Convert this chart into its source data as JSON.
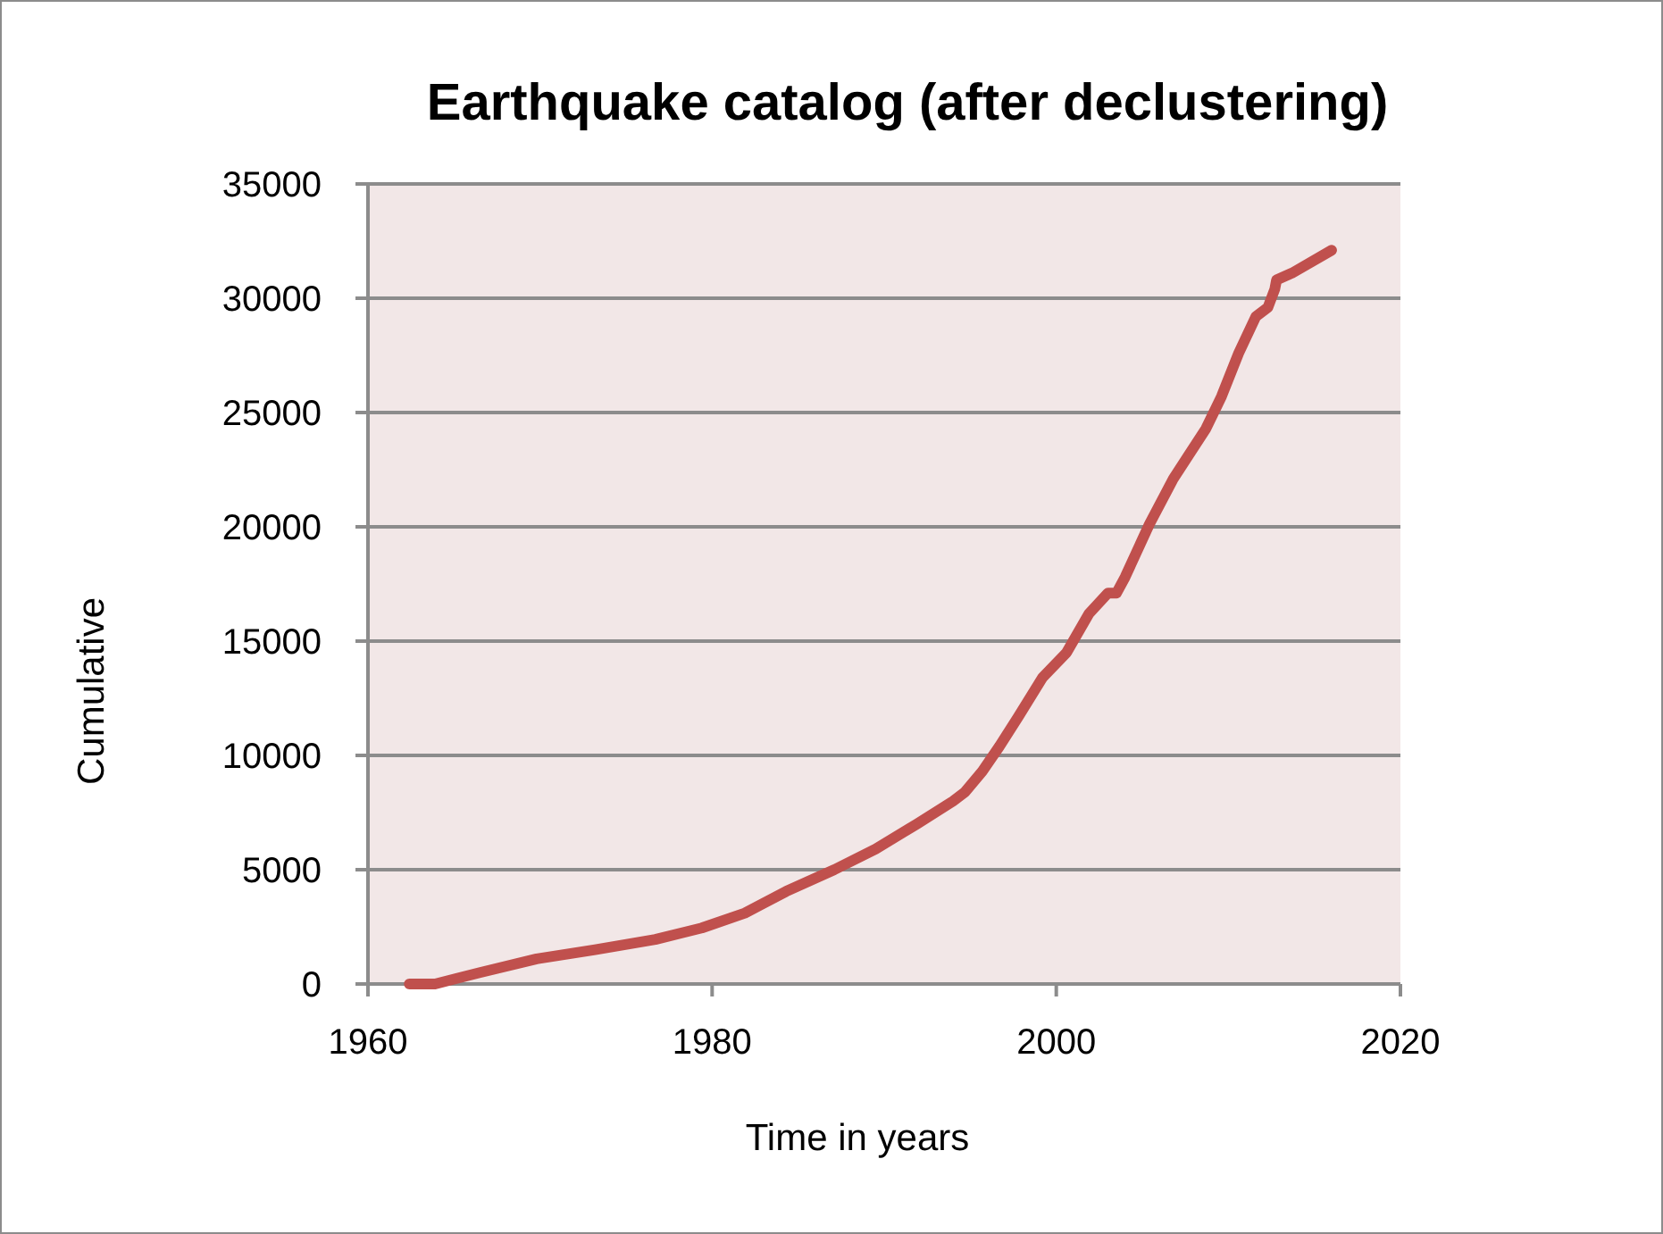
{
  "chart_data": {
    "type": "line",
    "title": "Earthquake catalog (after declustering)",
    "xlabel": "Time in years",
    "ylabel": "Cumulative",
    "x": [
      1962.4,
      1963.9,
      1966.5,
      1969.8,
      1973.2,
      1976.7,
      1979.4,
      1981.9,
      1984.3,
      1987.1,
      1989.5,
      1991.9,
      1994.0,
      1994.7,
      1995.7,
      1996.7,
      1997.8,
      1999.2,
      2000.6,
      2001.9,
      2003.0,
      2003.5,
      2004.0,
      2005.4,
      2006.8,
      2008.7,
      2009.6,
      2010.6,
      2011.6,
      2012.3,
      2012.7,
      2012.8,
      2013.7,
      2016.0
    ],
    "series": [
      {
        "color": "#c0504d",
        "values": [
          0,
          0,
          500,
          1100,
          1500,
          1950,
          2450,
          3100,
          4050,
          5000,
          5900,
          7000,
          8000,
          8400,
          9300,
          10400,
          11700,
          13400,
          14500,
          16200,
          17100,
          17100,
          17800,
          20100,
          22100,
          24300,
          25700,
          27600,
          29200,
          29600,
          30400,
          30800,
          31100,
          32100
        ]
      }
    ],
    "xlim": [
      1960,
      2020
    ],
    "xticks": [
      1960,
      1980,
      2000,
      2020
    ],
    "ylim": [
      0,
      35000
    ],
    "yticks": [
      0,
      5000,
      10000,
      15000,
      20000,
      25000,
      30000,
      35000
    ],
    "grid": "y"
  }
}
